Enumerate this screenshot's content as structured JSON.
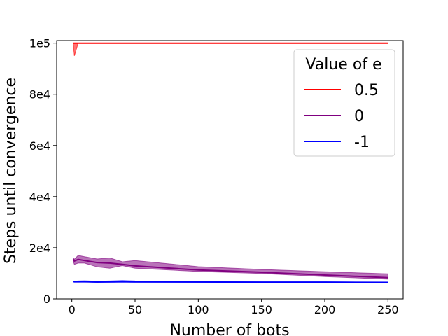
{
  "chart_data": {
    "type": "line",
    "xlabel": "Number of bots",
    "ylabel": "Steps until convergence",
    "xlim": [
      -12,
      262
    ],
    "ylim": [
      0,
      101000
    ],
    "xticks": [
      0,
      50,
      100,
      150,
      200,
      250
    ],
    "xtick_labels": [
      "0",
      "50",
      "100",
      "150",
      "200",
      "250"
    ],
    "yticks": [
      0,
      20000,
      40000,
      60000,
      80000,
      100000
    ],
    "ytick_labels": [
      "0",
      "2e4",
      "4e4",
      "6e4",
      "8e4",
      "1e5"
    ],
    "grid": false,
    "legend": {
      "title": "Value of e",
      "placement": "top-right"
    },
    "series": [
      {
        "name": "0.5",
        "color": "#ff0000",
        "x": [
          1,
          2,
          5,
          10,
          20,
          30,
          40,
          50,
          100,
          150,
          200,
          250
        ],
        "y": [
          100000,
          100000,
          100000,
          100000,
          100000,
          100000,
          100000,
          100000,
          100000,
          100000,
          100000,
          100000
        ],
        "y_low": [
          100000,
          95000,
          100000,
          100000,
          100000,
          100000,
          100000,
          100000,
          100000,
          100000,
          100000,
          100000
        ],
        "y_high": [
          100000,
          100000,
          100000,
          100000,
          100000,
          100000,
          100000,
          100000,
          100000,
          100000,
          100000,
          100000
        ]
      },
      {
        "name": "0",
        "color": "#800080",
        "x": [
          1,
          2,
          5,
          10,
          20,
          30,
          40,
          50,
          100,
          150,
          200,
          250
        ],
        "y": [
          15500,
          14800,
          15400,
          15000,
          14200,
          14000,
          13500,
          12900,
          11300,
          10400,
          9300,
          8300
        ],
        "y_low": [
          14800,
          13500,
          14000,
          14000,
          12500,
          12000,
          13000,
          12000,
          10700,
          9900,
          8700,
          7700
        ],
        "y_high": [
          16000,
          15500,
          17000,
          16500,
          15600,
          16000,
          14500,
          15000,
          12600,
          11500,
          10600,
          9800
        ]
      },
      {
        "name": "-1",
        "color": "#0000ff",
        "x": [
          1,
          2,
          5,
          10,
          20,
          30,
          40,
          50,
          100,
          150,
          200,
          250
        ],
        "y": [
          6800,
          6700,
          6700,
          6800,
          6600,
          6700,
          6800,
          6700,
          6600,
          6500,
          6500,
          6400
        ],
        "y_low": [
          6600,
          6500,
          6500,
          6500,
          6400,
          6400,
          6500,
          6400,
          6400,
          6300,
          6300,
          6200
        ],
        "y_high": [
          7000,
          6900,
          7000,
          7100,
          6900,
          7000,
          7200,
          7000,
          6900,
          6700,
          6700,
          6600
        ]
      }
    ]
  }
}
